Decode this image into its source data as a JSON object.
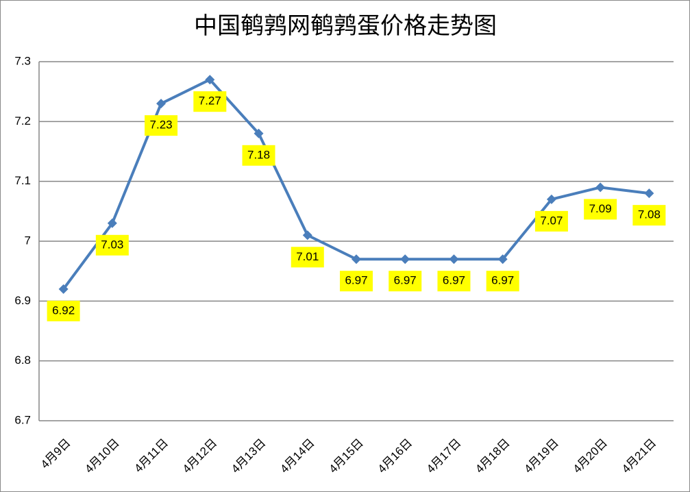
{
  "chart_data": {
    "type": "line",
    "title": "中国鹌鹑网鹌鹑蛋价格走势图",
    "categories": [
      "4月9日",
      "4月10日",
      "4月11日",
      "4月12日",
      "4月13日",
      "4月14日",
      "4月15日",
      "4月16日",
      "4月17日",
      "4月18日",
      "4月19日",
      "4月20日",
      "4月21日"
    ],
    "values": [
      6.92,
      7.03,
      7.23,
      7.27,
      7.18,
      7.01,
      6.97,
      6.97,
      6.97,
      6.97,
      7.07,
      7.09,
      7.08
    ],
    "color": "#4a7ebb",
    "label_color": "#ffff00",
    "title_color": "#ff0000",
    "ylim": [
      6.7,
      7.3
    ],
    "yticks": [
      6.7,
      6.8,
      6.9,
      7,
      7.1,
      7.2,
      7.3
    ],
    "grid": true
  }
}
